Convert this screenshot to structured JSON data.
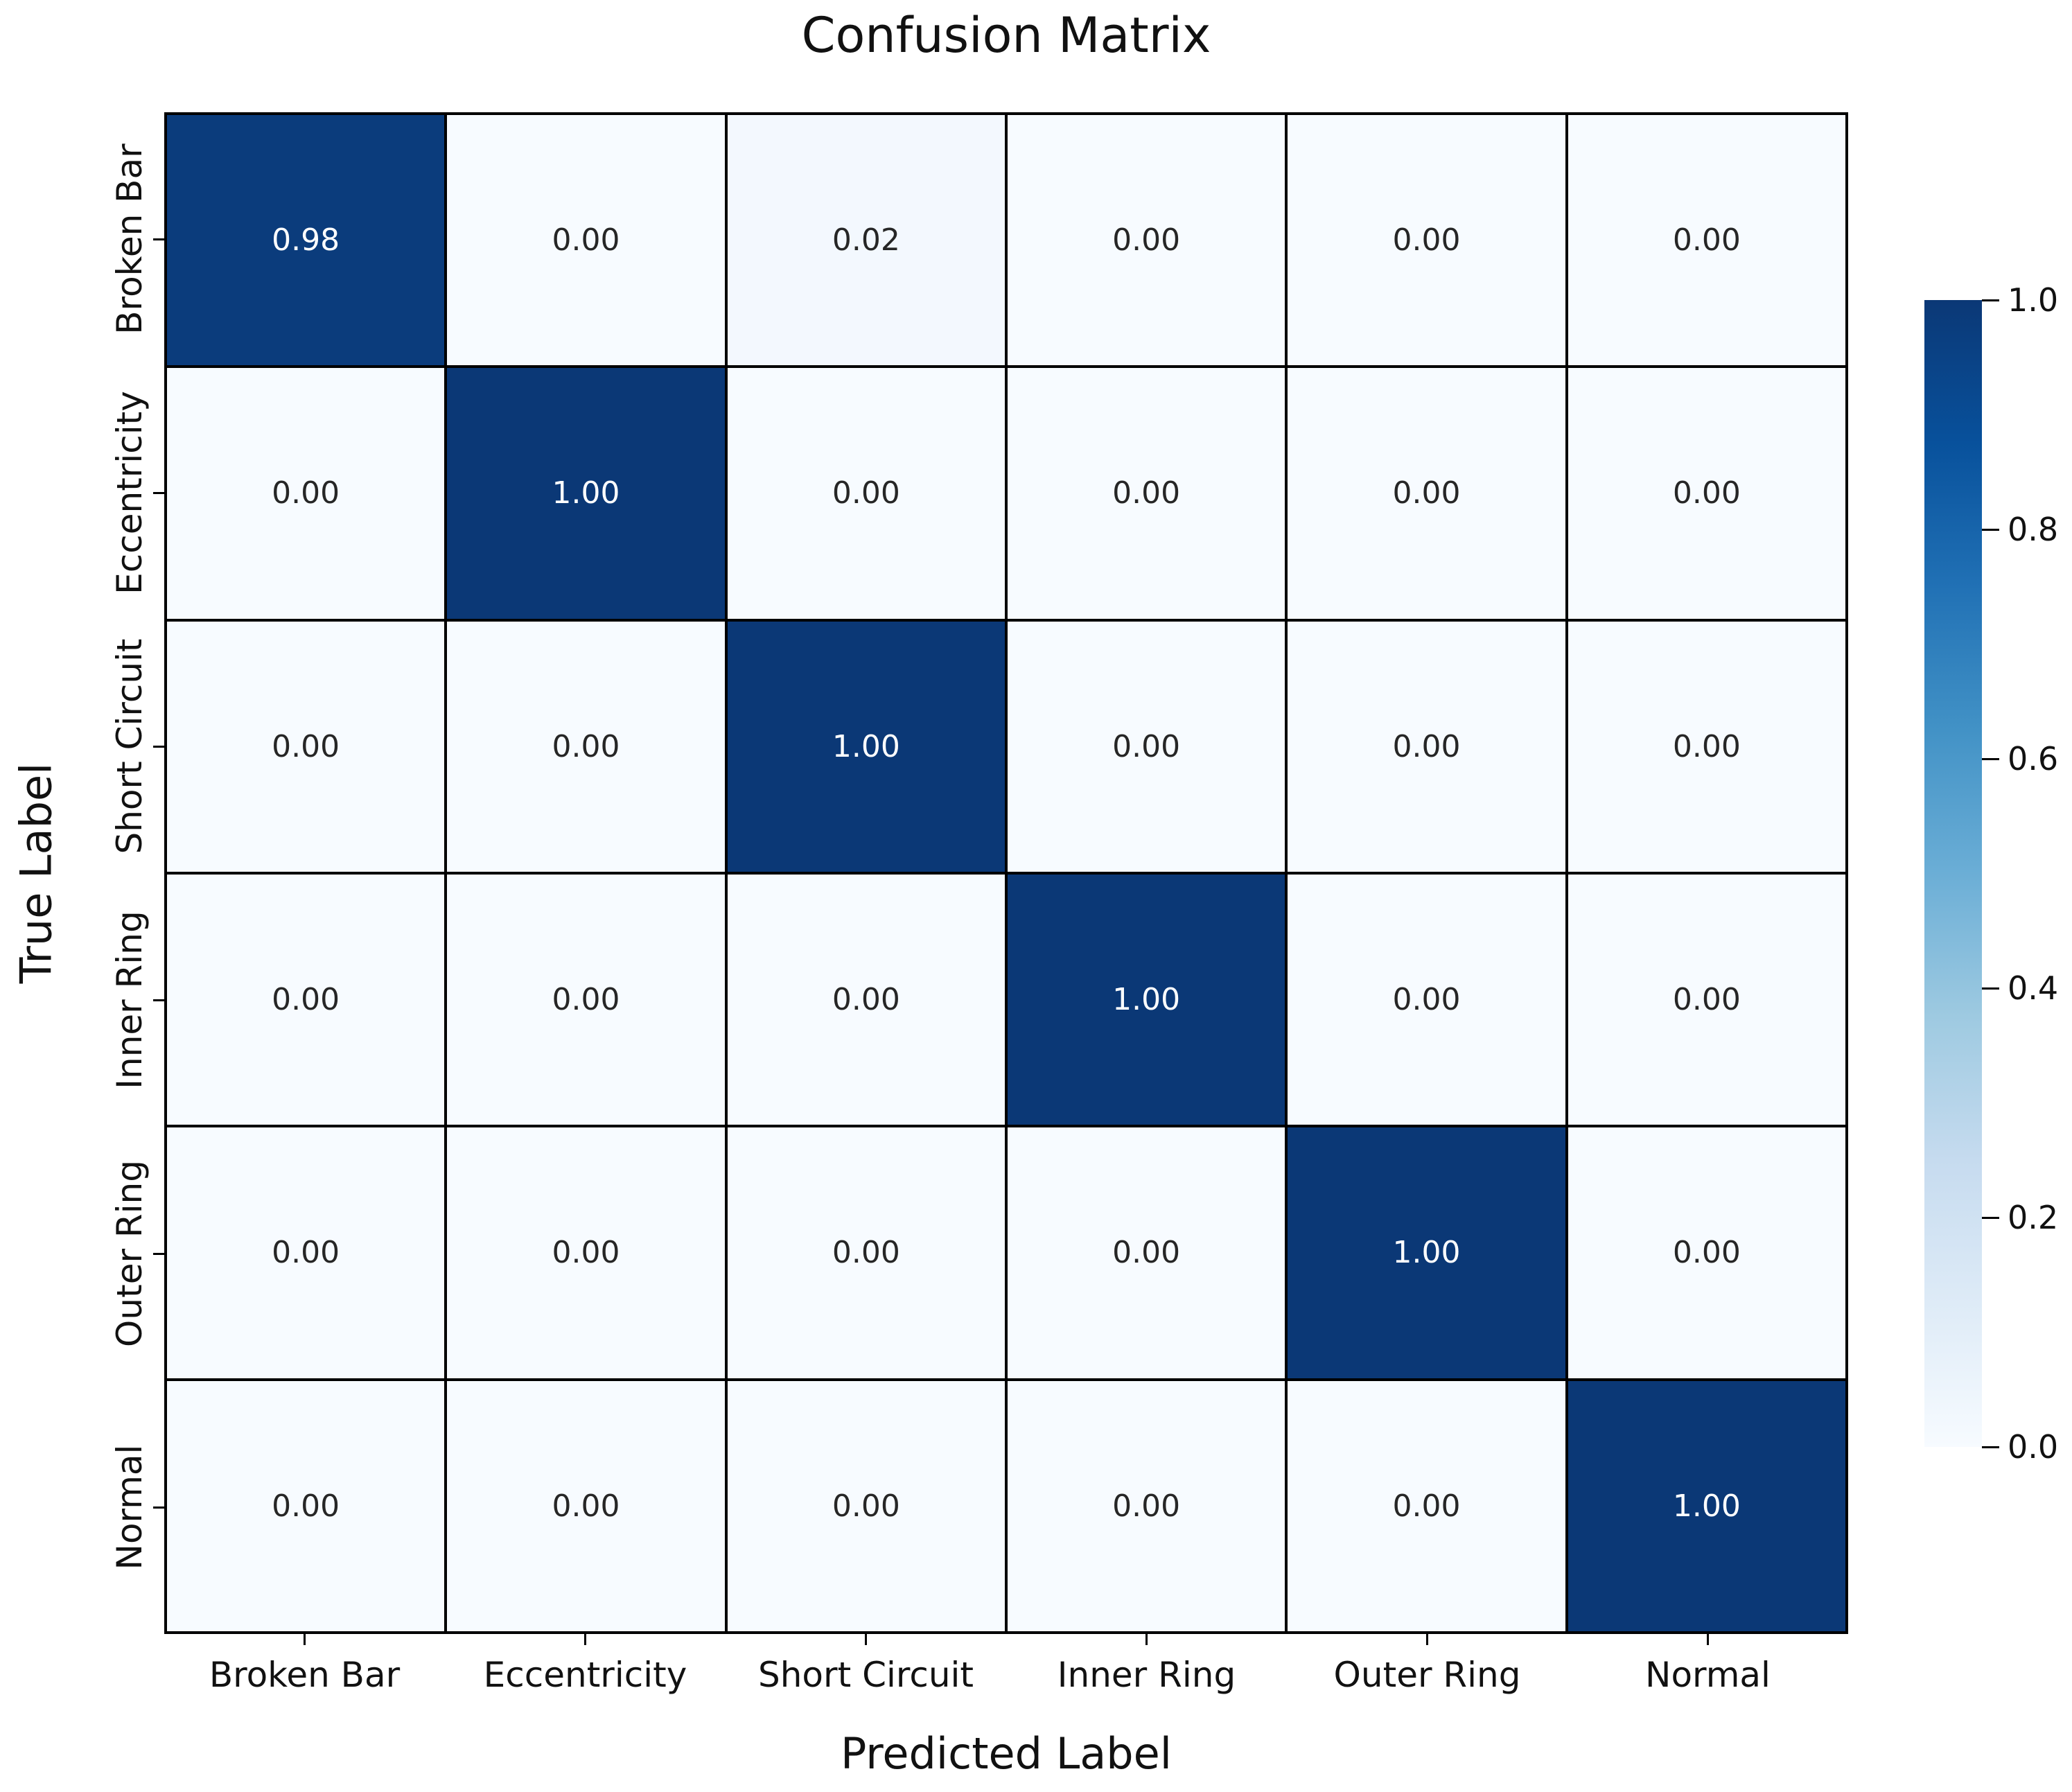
{
  "chart_data": {
    "type": "heatmap",
    "title": "Confusion Matrix",
    "xlabel": "Predicted Label",
    "ylabel": "True Label",
    "x_categories": [
      "Broken Bar",
      "Eccentricity",
      "Short Circuit",
      "Inner Ring",
      "Outer Ring",
      "Normal"
    ],
    "y_categories": [
      "Broken Bar",
      "Eccentricity",
      "Short Circuit",
      "Inner Ring",
      "Outer Ring",
      "Normal"
    ],
    "matrix": [
      [
        0.98,
        0.0,
        0.02,
        0.0,
        0.0,
        0.0
      ],
      [
        0.0,
        1.0,
        0.0,
        0.0,
        0.0,
        0.0
      ],
      [
        0.0,
        0.0,
        1.0,
        0.0,
        0.0,
        0.0
      ],
      [
        0.0,
        0.0,
        0.0,
        1.0,
        0.0,
        0.0
      ],
      [
        0.0,
        0.0,
        0.0,
        0.0,
        1.0,
        0.0
      ],
      [
        0.0,
        0.0,
        0.0,
        0.0,
        0.0,
        1.0
      ]
    ],
    "value_decimals": 2,
    "colormap": "Blues",
    "cmap_stops": [
      "#f7fbff",
      "#deebf7",
      "#c6dbef",
      "#9ecae1",
      "#6baed6",
      "#4292c6",
      "#2171b5",
      "#08519c",
      "#0b3876"
    ],
    "colorbar": {
      "min": 0.0,
      "max": 1.0,
      "tick_labels": [
        "1.0",
        "0.8",
        "0.6",
        "0.4",
        "0.2",
        "0.0"
      ],
      "position": "right"
    },
    "colors": {
      "annot_on_dark": "#ffffff",
      "annot_on_light": "#262626",
      "grid_line": "#000000",
      "background": "#ffffff"
    },
    "legend": "none",
    "grid": "cell-borders"
  }
}
